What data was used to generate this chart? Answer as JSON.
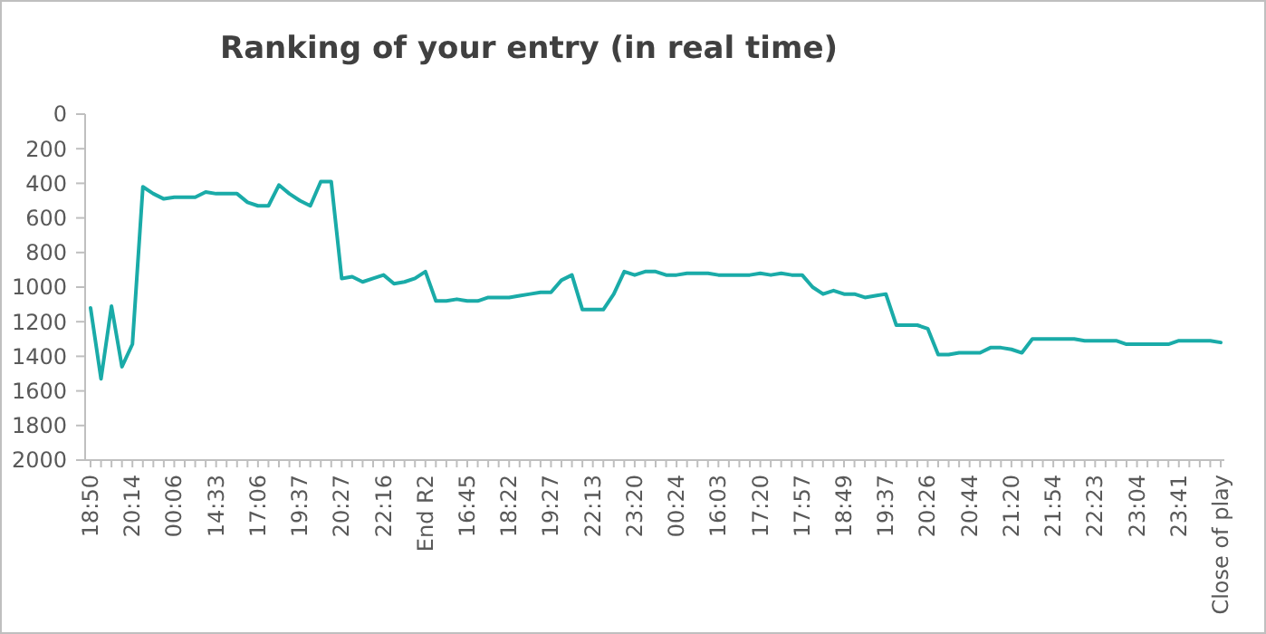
{
  "chart_data": {
    "type": "line",
    "title": "Ranking of your entry (in real time)",
    "categories": [
      "18:50",
      null,
      null,
      null,
      "20:14",
      null,
      null,
      null,
      "00:06",
      null,
      null,
      null,
      "14:33",
      null,
      null,
      null,
      "17:06",
      null,
      null,
      null,
      "19:37",
      null,
      null,
      null,
      "20:27",
      null,
      null,
      null,
      "22:16",
      null,
      null,
      null,
      "End R2",
      null,
      null,
      null,
      "16:45",
      null,
      null,
      null,
      "18:22",
      null,
      null,
      null,
      "19:27",
      null,
      null,
      null,
      "22:13",
      null,
      null,
      null,
      "23:20",
      null,
      null,
      null,
      "00:24",
      null,
      null,
      null,
      "16:03",
      null,
      null,
      null,
      "17:20",
      null,
      null,
      null,
      "17:57",
      null,
      null,
      null,
      "18:49",
      null,
      null,
      null,
      "19:37",
      null,
      null,
      null,
      "20:26",
      null,
      null,
      null,
      "20:44",
      null,
      null,
      null,
      "21:20",
      null,
      null,
      null,
      "21:54",
      null,
      null,
      null,
      "22:23",
      null,
      null,
      null,
      "23:04",
      null,
      null,
      null,
      "23:41",
      null,
      null,
      null,
      "Close of play"
    ],
    "series": [
      {
        "color": "#1aaba8",
        "values": [
          1120,
          1530,
          1110,
          1460,
          1330,
          420,
          460,
          490,
          480,
          480,
          480,
          450,
          460,
          460,
          460,
          510,
          530,
          530,
          410,
          460,
          500,
          530,
          390,
          390,
          950,
          940,
          970,
          950,
          930,
          980,
          970,
          950,
          910,
          1080,
          1080,
          1070,
          1080,
          1080,
          1060,
          1060,
          1060,
          1050,
          1040,
          1030,
          1030,
          960,
          930,
          1130,
          1130,
          1130,
          1040,
          910,
          930,
          910,
          910,
          930,
          930,
          920,
          920,
          920,
          930,
          930,
          930,
          930,
          920,
          930,
          920,
          930,
          930,
          1000,
          1040,
          1020,
          1040,
          1040,
          1060,
          1050,
          1040,
          1220,
          1220,
          1220,
          1240,
          1390,
          1390,
          1380,
          1380,
          1380,
          1350,
          1350,
          1360,
          1380,
          1300,
          1300,
          1300,
          1300,
          1300,
          1310,
          1310,
          1310,
          1310,
          1330,
          1330,
          1330,
          1330,
          1330,
          1310,
          1310,
          1310,
          1310,
          1320
        ]
      }
    ],
    "ylim": [
      2000,
      0
    ],
    "yticks": [
      0,
      200,
      400,
      600,
      800,
      1000,
      1200,
      1400,
      1600,
      1800,
      2000
    ],
    "grid": false,
    "marker": "none",
    "line_style": "solid"
  }
}
